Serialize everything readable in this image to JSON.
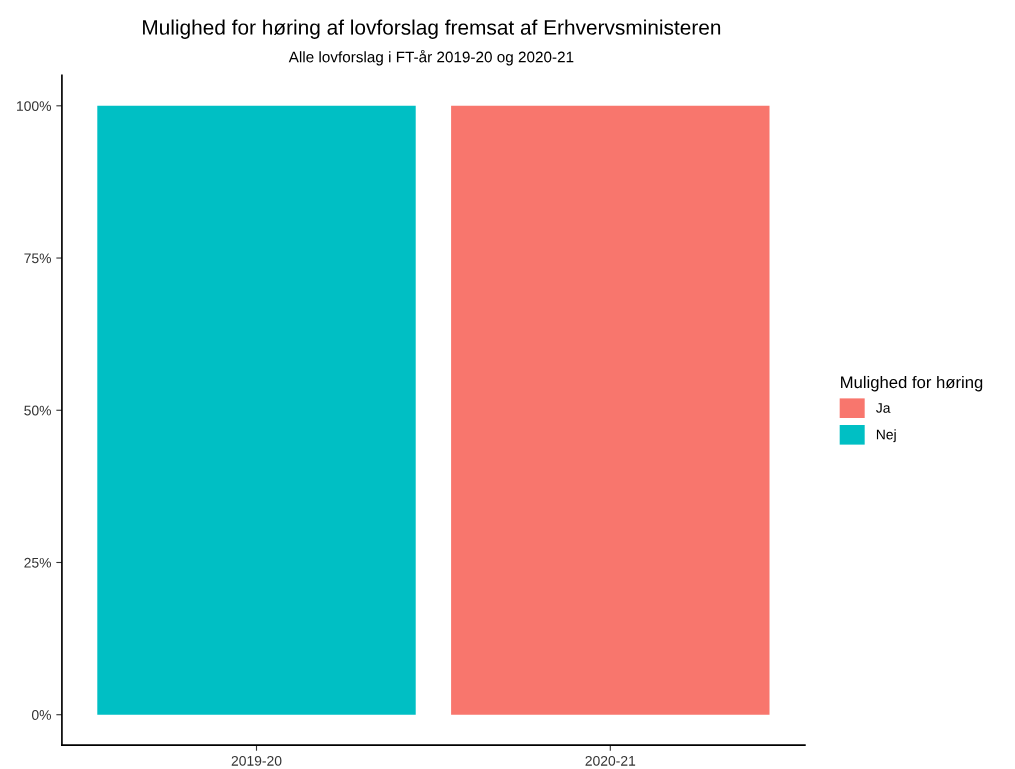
{
  "chart_data": {
    "type": "bar",
    "title": "Mulighed for høring af lovforslag fremsat af Erhvervsministeren",
    "subtitle": "Alle lovforslag i FT-år 2019-20 og 2020-21",
    "categories": [
      "2019-20",
      "2020-21"
    ],
    "stacked": true,
    "series": [
      {
        "name": "Ja",
        "color": "#f8766d",
        "values": [
          0,
          100
        ]
      },
      {
        "name": "Nej",
        "color": "#00bfc4",
        "values": [
          100,
          0
        ]
      }
    ],
    "legend_title": "Mulighed for høring",
    "legend": "right",
    "grid": false,
    "ylim": [
      -5,
      105
    ],
    "yticks": [
      {
        "value": 0,
        "label": "0%"
      },
      {
        "value": 25,
        "label": "25%"
      },
      {
        "value": 50,
        "label": "50%"
      },
      {
        "value": 75,
        "label": "75%"
      },
      {
        "value": 100,
        "label": "100%"
      }
    ]
  }
}
